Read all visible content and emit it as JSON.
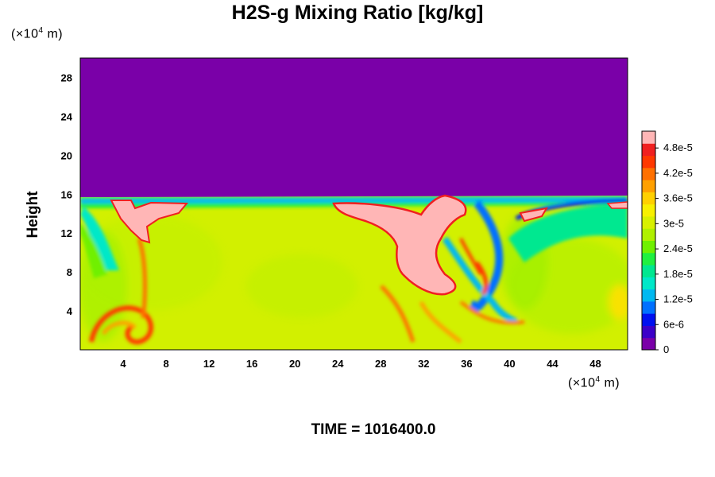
{
  "chart_data": {
    "type": "heatmap",
    "title": "H2S-g Mixing Ratio [kg/kg]",
    "ylabel": "Height",
    "x_unit": "(×10⁴ m)",
    "y_unit": "(×10⁴ m)",
    "xlim": [
      0,
      51
    ],
    "ylim": [
      0,
      30
    ],
    "x_ticks": [
      "4",
      "8",
      "12",
      "16",
      "20",
      "24",
      "28",
      "32",
      "36",
      "40",
      "44",
      "48"
    ],
    "x_tick_values": [
      4,
      8,
      12,
      16,
      20,
      24,
      28,
      32,
      36,
      40,
      44,
      48
    ],
    "y_ticks": [
      "4",
      "8",
      "12",
      "16",
      "20",
      "24",
      "28"
    ],
    "y_tick_values": [
      4,
      8,
      12,
      16,
      20,
      24,
      28
    ],
    "colorbar": {
      "labels": [
        "0",
        "6e-6",
        "1.2e-5",
        "1.8e-5",
        "2.4e-5",
        "3e-5",
        "3.6e-5",
        "4.2e-5",
        "4.8e-5"
      ],
      "values": [
        0,
        6e-06,
        1.2e-05,
        1.8e-05,
        2.4e-05,
        3e-05,
        3.6e-05,
        4.2e-05,
        4.8e-05
      ],
      "range": [
        0,
        5.2e-05
      ],
      "colors": [
        "#7a00a8",
        "#3c00c8",
        "#0010f0",
        "#0070ff",
        "#00b8f0",
        "#00e8c8",
        "#00e890",
        "#20f040",
        "#70f000",
        "#b0f000",
        "#d8f000",
        "#f8f000",
        "#ffd000",
        "#ffa000",
        "#ff7000",
        "#ff3800",
        "#f02020",
        "#ffb6b6"
      ]
    },
    "background_value": "0 above ~15.5 (x10^4 m)",
    "field_value_below_tropopause": "about 3.3e-5 to 3.6e-5"
  },
  "time_label": "TIME = 1016400.0"
}
